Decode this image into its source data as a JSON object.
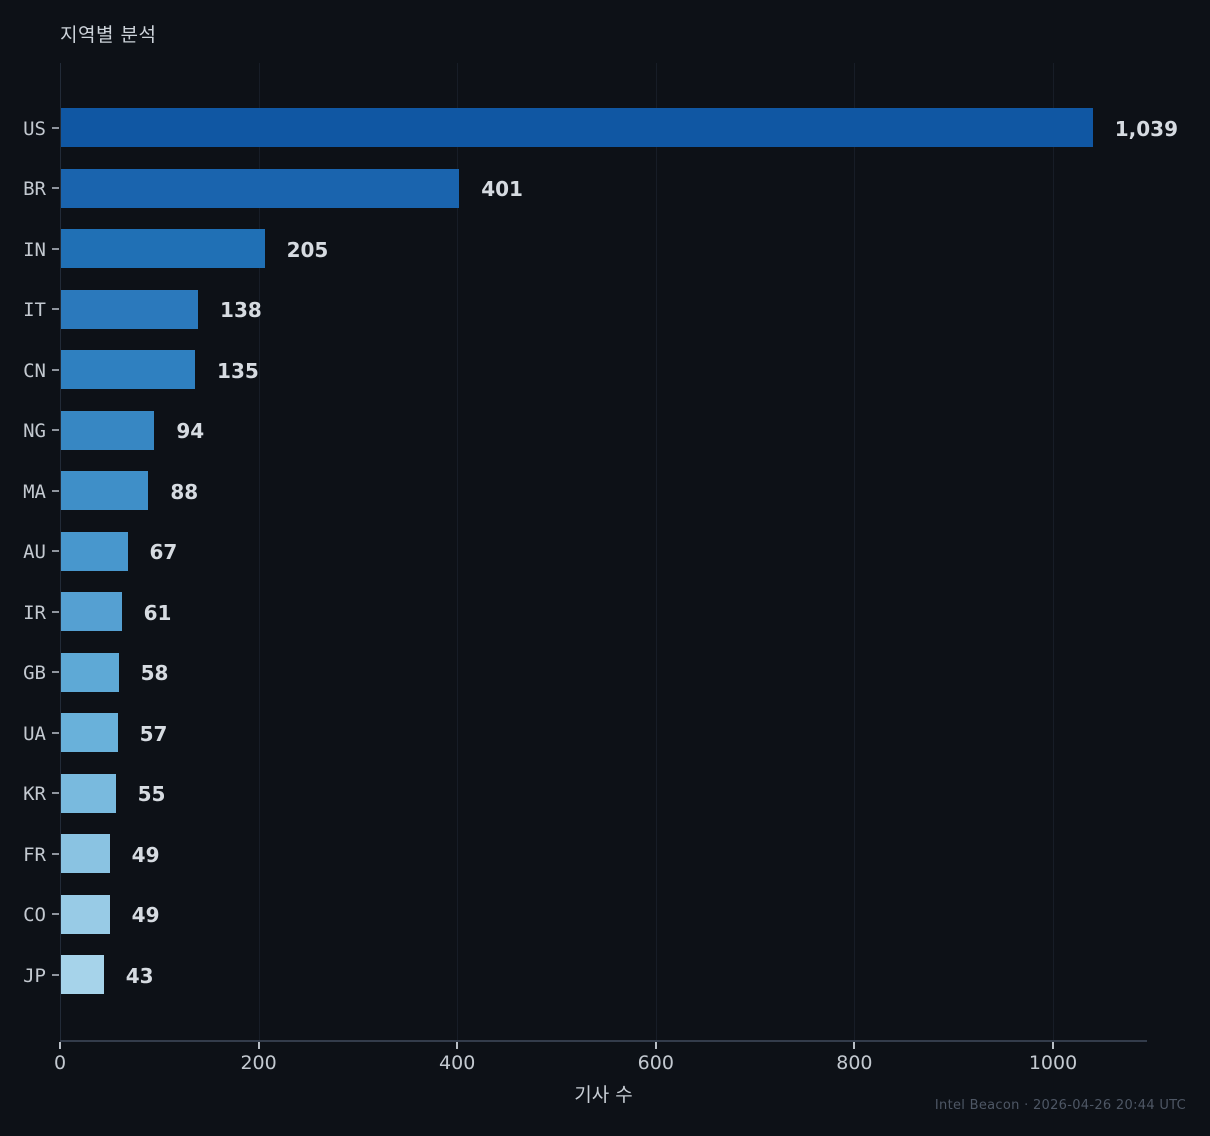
{
  "title": "지역별 분석",
  "footer": "Intel Beacon · 2026-04-26 20:44 UTC",
  "colors": {
    "background": "#0d1117",
    "title_text": "#ccd2d9",
    "tick_text": "#c3c9d0",
    "value_text": "#d6dbe1",
    "footer_text": "#4e5765",
    "gridline": "#171d27",
    "axis_line": "#333c4b"
  },
  "chart_data": {
    "type": "bar",
    "orientation": "horizontal",
    "title": "지역별 분석",
    "xlabel": "기사 수",
    "ylabel": "",
    "categories": [
      "US",
      "BR",
      "IN",
      "IT",
      "CN",
      "NG",
      "MA",
      "AU",
      "IR",
      "GB",
      "UA",
      "KR",
      "FR",
      "CO",
      "JP"
    ],
    "values": [
      1039,
      401,
      205,
      138,
      135,
      94,
      88,
      67,
      61,
      58,
      57,
      55,
      49,
      49,
      43
    ],
    "value_labels": [
      "1,039",
      "401",
      "205",
      "138",
      "135",
      "94",
      "88",
      "67",
      "61",
      "58",
      "57",
      "55",
      "49",
      "49",
      "43"
    ],
    "bar_colors": [
      "#1057a3",
      "#1a64ae",
      "#2070b5",
      "#2b79bc",
      "#2f80c0",
      "#3787c3",
      "#3f8fc8",
      "#4897cd",
      "#55a0d2",
      "#5ea9d6",
      "#69b1da",
      "#79bade",
      "#8ac3e2",
      "#98cbe6",
      "#a6d3ea"
    ],
    "x_ticks": [
      0,
      200,
      400,
      600,
      800,
      1000
    ],
    "x_tick_labels": [
      "0",
      "200",
      "400",
      "600",
      "800",
      "1000"
    ],
    "xlim": [
      0,
      1095
    ],
    "grid": "vertical",
    "legend": "none"
  }
}
